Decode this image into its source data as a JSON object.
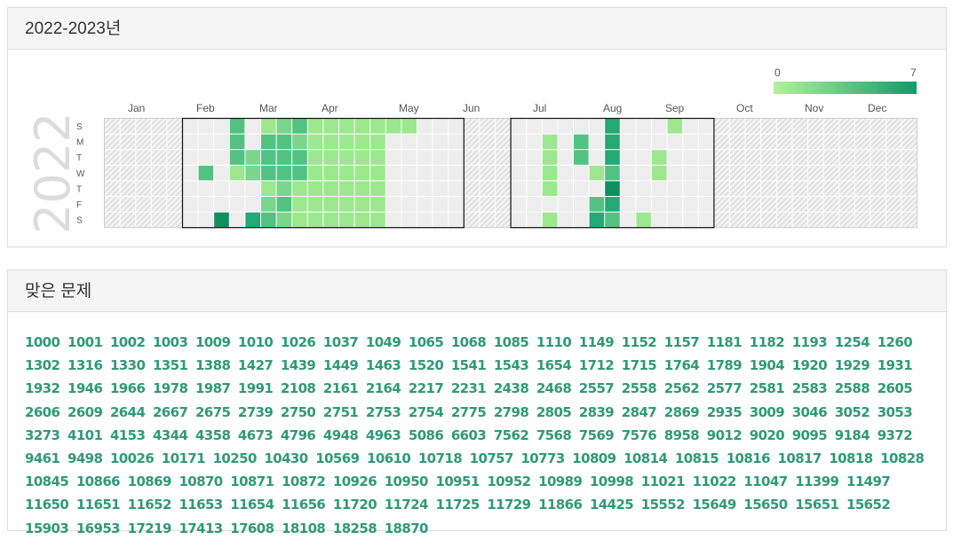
{
  "streak_panel": {
    "title": "2022-2023년",
    "year_label": "2022",
    "legend": {
      "min": "0",
      "max": "7",
      "low_color": "#b6f09c",
      "high_color": "#0f9d6a"
    },
    "months": [
      "Jan",
      "Feb",
      "Mar",
      "Apr",
      "May",
      "Jun",
      "Jul",
      "Aug",
      "Sep",
      "Oct",
      "Nov",
      "Dec"
    ],
    "weekdays": [
      "S",
      "M",
      "T",
      "W",
      "T",
      "F",
      "S"
    ],
    "colors": {
      "l1": "#9de88f",
      "l2": "#79d68a",
      "l3": "#52c283",
      "l4": "#22a975",
      "l5": "#0f8e5e",
      "empty": "#eeeeee",
      "hatch": "#d4d4d4",
      "border": "#111111"
    },
    "active_weeks": {
      "5": [
        0,
        0,
        0,
        0,
        0,
        0,
        0
      ],
      "6": [
        0,
        0,
        0,
        3,
        0,
        0,
        0
      ],
      "7": [
        0,
        0,
        0,
        0,
        0,
        0,
        5
      ],
      "8": [
        3,
        3,
        3,
        1,
        0,
        0,
        0
      ],
      "9": [
        0,
        0,
        2,
        2,
        0,
        0,
        4
      ],
      "10": [
        1,
        3,
        3,
        3,
        1,
        2,
        3
      ],
      "11": [
        2,
        3,
        3,
        3,
        2,
        3,
        2
      ],
      "12": [
        3,
        2,
        3,
        3,
        1,
        1,
        1
      ],
      "13": [
        1,
        1,
        1,
        1,
        1,
        1,
        1
      ],
      "14": [
        1,
        1,
        1,
        1,
        1,
        1,
        1
      ],
      "15": [
        1,
        1,
        1,
        1,
        1,
        1,
        1
      ],
      "16": [
        1,
        1,
        1,
        1,
        1,
        1,
        1
      ],
      "17": [
        1,
        1,
        1,
        1,
        1,
        1,
        1
      ],
      "18": [
        1,
        0,
        0,
        0,
        0,
        0,
        0
      ],
      "19": [
        1,
        0,
        0,
        0,
        0,
        0,
        0
      ],
      "20": [
        0,
        0,
        0,
        0,
        0,
        0,
        0
      ],
      "21": [
        0,
        0,
        0,
        0,
        0,
        0,
        0
      ],
      "22": [
        0,
        0,
        0,
        0,
        0,
        0,
        0
      ],
      "26": [
        0,
        0,
        0,
        0,
        0,
        0,
        0
      ],
      "27": [
        0,
        0,
        0,
        0,
        0,
        0,
        0
      ],
      "28": [
        0,
        1,
        1,
        1,
        1,
        0,
        1
      ],
      "29": [
        0,
        0,
        0,
        0,
        0,
        0,
        0
      ],
      "30": [
        0,
        3,
        3,
        0,
        0,
        0,
        0
      ],
      "31": [
        0,
        0,
        0,
        1,
        0,
        3,
        4
      ],
      "32": [
        4,
        4,
        4,
        3,
        5,
        4,
        3
      ],
      "33": [
        0,
        0,
        0,
        0,
        0,
        0,
        0
      ],
      "34": [
        0,
        0,
        0,
        0,
        0,
        0,
        1
      ],
      "35": [
        0,
        0,
        1,
        1,
        0,
        0,
        0
      ],
      "36": [
        1,
        0,
        0,
        0,
        0,
        0,
        0
      ],
      "37": [
        0,
        0,
        0,
        0,
        0,
        0,
        0
      ],
      "38": [
        0,
        0,
        0,
        0,
        0,
        0,
        0
      ]
    }
  },
  "solved_panel": {
    "title": "맞은 문제",
    "problems": [
      "1000",
      "1001",
      "1002",
      "1003",
      "1009",
      "1010",
      "1026",
      "1037",
      "1049",
      "1065",
      "1068",
      "1085",
      "1110",
      "1149",
      "1152",
      "1157",
      "1181",
      "1182",
      "1193",
      "1254",
      "1260",
      "1302",
      "1316",
      "1330",
      "1351",
      "1388",
      "1427",
      "1439",
      "1449",
      "1463",
      "1520",
      "1541",
      "1543",
      "1654",
      "1712",
      "1715",
      "1764",
      "1789",
      "1904",
      "1920",
      "1929",
      "1931",
      "1932",
      "1946",
      "1966",
      "1978",
      "1987",
      "1991",
      "2108",
      "2161",
      "2164",
      "2217",
      "2231",
      "2438",
      "2468",
      "2557",
      "2558",
      "2562",
      "2577",
      "2581",
      "2583",
      "2588",
      "2605",
      "2606",
      "2609",
      "2644",
      "2667",
      "2675",
      "2739",
      "2750",
      "2751",
      "2753",
      "2754",
      "2775",
      "2798",
      "2805",
      "2839",
      "2847",
      "2869",
      "2935",
      "3009",
      "3046",
      "3052",
      "3053",
      "3273",
      "4101",
      "4153",
      "4344",
      "4358",
      "4673",
      "4796",
      "4948",
      "4963",
      "5086",
      "6603",
      "7562",
      "7568",
      "7569",
      "7576",
      "8958",
      "9012",
      "9020",
      "9095",
      "9184",
      "9372",
      "9461",
      "9498",
      "10026",
      "10171",
      "10250",
      "10430",
      "10569",
      "10610",
      "10718",
      "10757",
      "10773",
      "10809",
      "10814",
      "10815",
      "10816",
      "10817",
      "10818",
      "10828",
      "10845",
      "10866",
      "10869",
      "10870",
      "10871",
      "10872",
      "10926",
      "10950",
      "10951",
      "10952",
      "10989",
      "10998",
      "11021",
      "11022",
      "11047",
      "11399",
      "11497",
      "11650",
      "11651",
      "11652",
      "11653",
      "11654",
      "11656",
      "11720",
      "11724",
      "11725",
      "11729",
      "11866",
      "14425",
      "15552",
      "15649",
      "15650",
      "15651",
      "15652",
      "15903",
      "16953",
      "17219",
      "17413",
      "17608",
      "18108",
      "18258",
      "18870"
    ]
  }
}
